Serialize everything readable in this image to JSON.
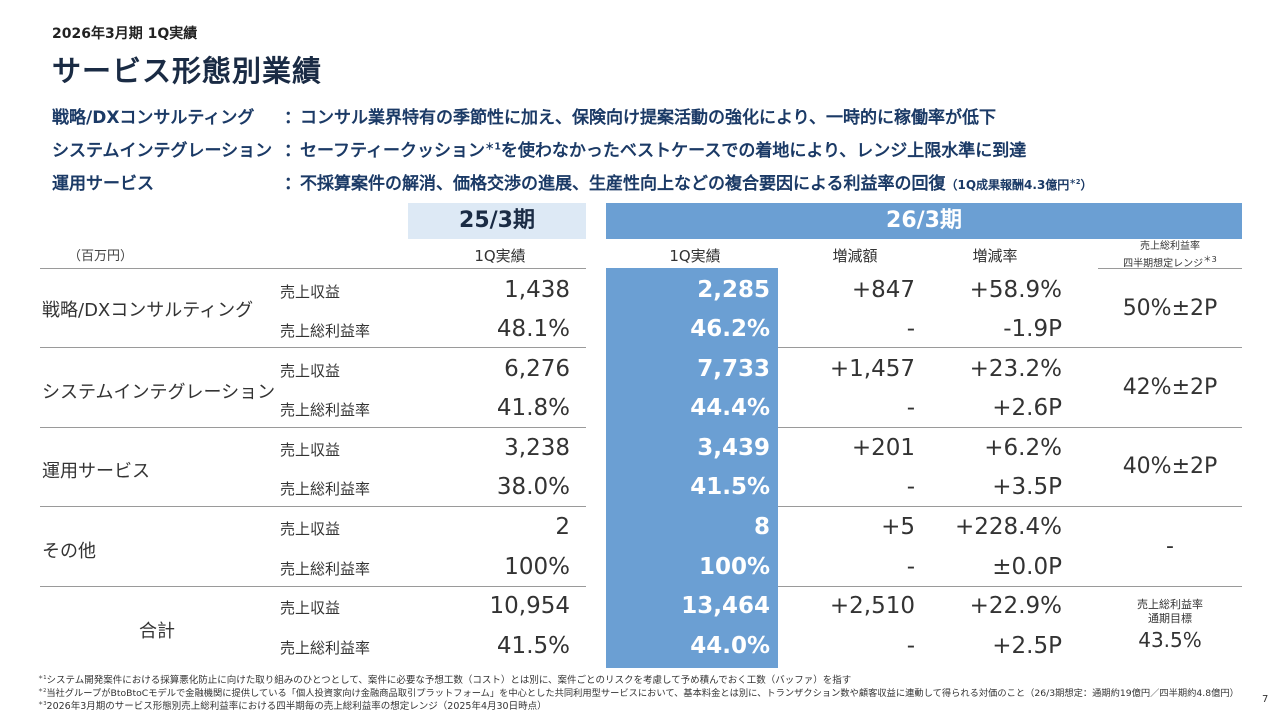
{
  "header": {
    "period": "2026年3月期 1Q実績",
    "title": "サービス形態別業績"
  },
  "summary": [
    {
      "label": "戦略/DXコンサルティング",
      "sep": "：",
      "text": "コンサル業界特有の季節性に加え、保険向け提案活動の強化により、一時的に稼働率が低下"
    },
    {
      "label": "システムインテグレーション",
      "sep": "：",
      "text_a": "セーフティークッション",
      "sup": "＊1",
      "text_b": "を使わなかったベストケースでの着地により、レンジ上限水準に到達"
    },
    {
      "label": "運用サービス",
      "sep": "：",
      "text": "不採算案件の解消、価格交渉の進展、生産性向上などの複合要因による利益率の回復",
      "note_a": "（1Q成果報酬4.3億円",
      "note_sup": "＊2",
      "note_b": "）"
    }
  ],
  "table": {
    "unit": "（百万円）",
    "fy25": "25/3期",
    "fy26": "26/3期",
    "col_25": "1Q実績",
    "col_26": "1Q実績",
    "col_diff": "増減額",
    "col_rate": "増減率",
    "col_range_l1": "売上総利益率",
    "col_range_l2": "四半期想定レンジ",
    "col_range_sup": "＊3",
    "rows": [
      {
        "segment": "戦略/DXコンサルティング",
        "m1": "売上収益",
        "p1": "1,438",
        "c1": "2,285",
        "d1": "+847",
        "r1": "+58.9%",
        "m2": "売上総利益率",
        "p2": "48.1%",
        "c2": "46.2%",
        "d2": "-",
        "r2": "-1.9P",
        "range": "50%±2P"
      },
      {
        "segment": "システムインテグレーション",
        "m1": "売上収益",
        "p1": "6,276",
        "c1": "7,733",
        "d1": "+1,457",
        "r1": "+23.2%",
        "m2": "売上総利益率",
        "p2": "41.8%",
        "c2": "44.4%",
        "d2": "-",
        "r2": "+2.6P",
        "range": "42%±2P"
      },
      {
        "segment": "運用サービス",
        "m1": "売上収益",
        "p1": "3,238",
        "c1": "3,439",
        "d1": "+201",
        "r1": "+6.2%",
        "m2": "売上総利益率",
        "p2": "38.0%",
        "c2": "41.5%",
        "d2": "-",
        "r2": "+3.5P",
        "range": "40%±2P"
      },
      {
        "segment": "その他",
        "m1": "売上収益",
        "p1": "2",
        "c1": "8",
        "d1": "+5",
        "r1": "+228.4%",
        "m2": "売上総利益率",
        "p2": "100%",
        "c2": "100%",
        "d2": "-",
        "r2": "±0.0P",
        "range": "-"
      },
      {
        "segment": "合計",
        "m1": "売上収益",
        "p1": "10,954",
        "c1": "13,464",
        "d1": "+2,510",
        "r1": "+22.9%",
        "m2": "売上総利益率",
        "p2": "41.5%",
        "c2": "44.0%",
        "d2": "-",
        "r2": "+2.5P",
        "target_l1": "売上総利益率",
        "target_l2": "通期目標",
        "target_value": "43.5%"
      }
    ]
  },
  "footnotes": [
    {
      "mark": "＊1",
      "text": "システム開発案件における採算悪化防止に向けた取り組みのひとつとして、案件に必要な予想工数（コスト）とは別に、案件ごとのリスクを考慮して予め積んでおく工数（バッファ）を指す"
    },
    {
      "mark": "＊2",
      "text": "当社グループがBtoBtoCモデルで金融機関に提供している「個人投資家向け金融商品取引プラットフォーム」を中心とした共同利用型サービスにおいて、基本料金とは別に、トランザクション数や顧客収益に連動して得られる対価のこと（26/3期想定：通期約19億円／四半期約4.8億円）"
    },
    {
      "mark": "＊3",
      "text": "2026年3月期のサービス形態別売上総利益率における四半期毎の売上総利益率の想定レンジ（2025年4月30日時点）"
    }
  ],
  "page_number": "7",
  "colors": {
    "accent": "#6b9fd3",
    "accent_light": "#dde9f5",
    "title": "#1a2b44",
    "summary_text": "#1b3a66"
  }
}
